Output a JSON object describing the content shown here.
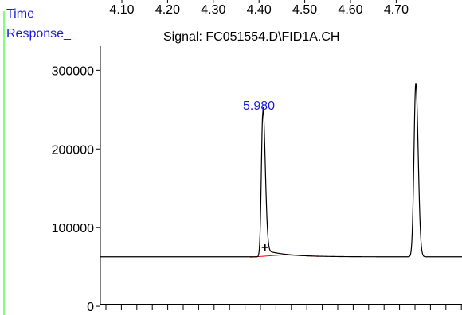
{
  "chart_data": {
    "type": "line",
    "signal_title": "Signal: FC051554.D\\FID1A.CH",
    "time_label": "Time",
    "response_label": "Response_",
    "time_ticks": [
      "4.10",
      "4.20",
      "4.30",
      "4.40",
      "4.50",
      "4.60",
      "4.70"
    ],
    "y_ticks": [
      "0",
      "100000",
      "200000",
      "300000"
    ],
    "y_tick_values": [
      0,
      100000,
      200000,
      300000
    ],
    "ylim": [
      -8000,
      360000
    ],
    "baseline_level": 63000,
    "peaks": [
      {
        "rt_label": "5.980",
        "height": 247000
      },
      {
        "height": 284000
      }
    ],
    "integration_marker": "+",
    "colors": {
      "axis_label": "#1c1cdc",
      "frame": "#00ff00",
      "trace": "#000000",
      "integration_baseline": "#ff0000",
      "peak_label": "#1c1cdc"
    }
  }
}
